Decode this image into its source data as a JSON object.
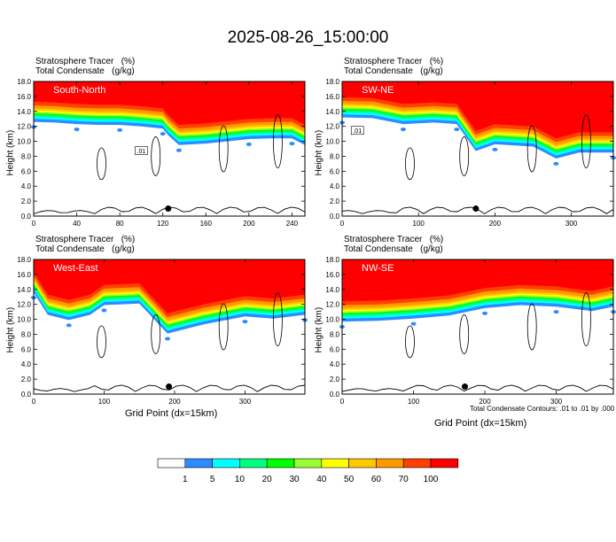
{
  "title": "2025-08-26_15:00:00",
  "header_line1": "Stratosphere Tracer   (%)",
  "header_line2": "Total Condensate   (g/kg)",
  "ylabel": "Height (km)",
  "xlabel": "Grid Point (dx=15km)",
  "contour_note": "Total Condensate Contours: .01 to .01 by .000",
  "colors": {
    "red": "#ff0000",
    "orange_red": "#ff4000",
    "orange": "#ff9900",
    "gold": "#ffc800",
    "yellow": "#ffff00",
    "yellow_green": "#99ff33",
    "green": "#00ff00",
    "spring_green": "#00ff80",
    "cyan": "#00ffff",
    "blue": "#2b8cff",
    "white": "#ffffff"
  },
  "chart_data": [
    {
      "type": "heatmap",
      "panel_label": "South-North",
      "x_ticks": [
        0,
        40,
        80,
        120,
        160,
        200,
        240
      ],
      "xlim": [
        0,
        252
      ],
      "y_ticks": [
        "0.0",
        "2.0",
        "4.0",
        "6.0",
        "8.0",
        "10.0",
        "12.0",
        "14.0",
        "16.0",
        "18.0"
      ],
      "ylim": [
        0,
        18
      ],
      "contour_label": ".01",
      "tropopause_profile_km": [
        [
          0,
          13.5
        ],
        [
          20,
          13.4
        ],
        [
          40,
          13.2
        ],
        [
          60,
          13.1
        ],
        [
          80,
          13.1
        ],
        [
          100,
          12.9
        ],
        [
          120,
          12.6
        ],
        [
          125,
          11.7
        ],
        [
          135,
          10.4
        ],
        [
          160,
          10.6
        ],
        [
          200,
          11.2
        ],
        [
          220,
          11.3
        ],
        [
          240,
          11.3
        ],
        [
          252,
          10.4
        ]
      ],
      "marker": [
        125,
        1.0
      ]
    },
    {
      "type": "heatmap",
      "panel_label": "SW-NE",
      "x_ticks": [
        0,
        100,
        200,
        300
      ],
      "xlim": [
        0,
        355
      ],
      "y_ticks": [
        "0.0",
        "2.0",
        "4.0",
        "6.0",
        "8.0",
        "10.0",
        "12.0",
        "14.0",
        "16.0",
        "18.0"
      ],
      "ylim": [
        0,
        18
      ],
      "contour_label": ".01",
      "tropopause_profile_km": [
        [
          0,
          14.1
        ],
        [
          40,
          14.0
        ],
        [
          80,
          13.2
        ],
        [
          120,
          13.4
        ],
        [
          150,
          13.2
        ],
        [
          175,
          9.6
        ],
        [
          200,
          10.5
        ],
        [
          250,
          10.2
        ],
        [
          280,
          8.6
        ],
        [
          310,
          9.4
        ],
        [
          355,
          9.4
        ]
      ],
      "marker": [
        175,
        1.0
      ]
    },
    {
      "type": "heatmap",
      "panel_label": "West-East",
      "x_ticks": [
        0,
        100,
        200,
        300
      ],
      "xlim": [
        0,
        385
      ],
      "y_ticks": [
        "0.0",
        "2.0",
        "4.0",
        "6.0",
        "8.0",
        "10.0",
        "12.0",
        "14.0",
        "16.0",
        "18.0"
      ],
      "ylim": [
        0,
        18
      ],
      "tropopause_profile_km": [
        [
          0,
          14.5
        ],
        [
          20,
          11.5
        ],
        [
          50,
          10.8
        ],
        [
          80,
          11.5
        ],
        [
          100,
          12.8
        ],
        [
          150,
          13.0
        ],
        [
          190,
          9.0
        ],
        [
          240,
          10.2
        ],
        [
          300,
          11.3
        ],
        [
          340,
          11.0
        ],
        [
          385,
          11.5
        ]
      ],
      "marker": [
        192,
        1.0
      ]
    },
    {
      "type": "heatmap",
      "panel_label": "NW-SE",
      "x_ticks": [
        0,
        100,
        200,
        300
      ],
      "xlim": [
        0,
        380
      ],
      "y_ticks": [
        "0.0",
        "2.0",
        "4.0",
        "6.0",
        "8.0",
        "10.0",
        "12.0",
        "14.0",
        "16.0",
        "18.0"
      ],
      "ylim": [
        0,
        18
      ],
      "tropopause_profile_km": [
        [
          0,
          10.6
        ],
        [
          50,
          10.7
        ],
        [
          100,
          11.0
        ],
        [
          150,
          11.4
        ],
        [
          200,
          12.4
        ],
        [
          250,
          12.8
        ],
        [
          300,
          12.6
        ],
        [
          350,
          12.0
        ],
        [
          380,
          12.6
        ]
      ],
      "marker": [
        172,
        1.0
      ]
    }
  ],
  "legend": {
    "labels": [
      "1",
      "5",
      "10",
      "20",
      "30",
      "40",
      "50",
      "60",
      "70",
      "100"
    ],
    "colors": [
      "#ffffff",
      "#2b8cff",
      "#00ffff",
      "#00ff80",
      "#00ff00",
      "#99ff33",
      "#ffff00",
      "#ffc800",
      "#ff9900",
      "#ff4000",
      "#ff0000"
    ]
  }
}
